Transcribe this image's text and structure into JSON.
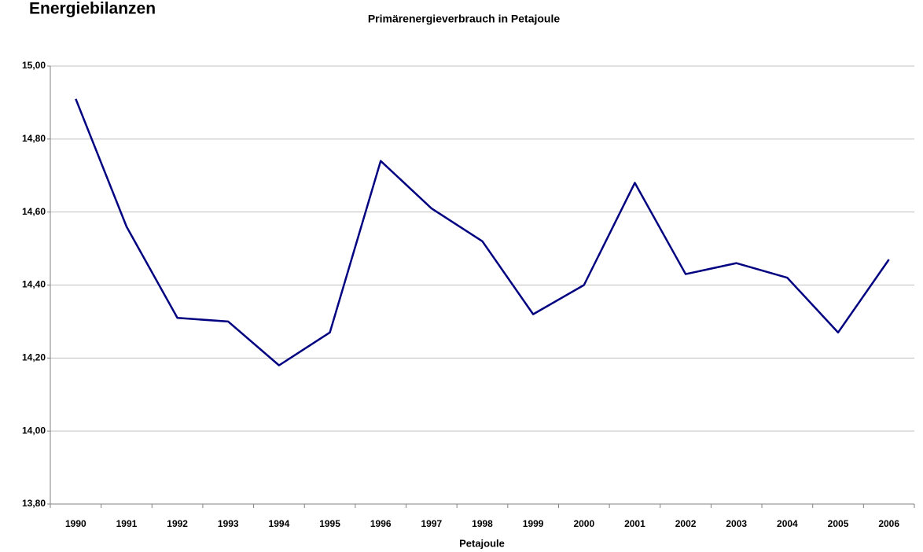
{
  "header": {
    "title": "Energiebilanzen"
  },
  "chart_data": {
    "type": "line",
    "title": "Primärenergieverbrauch in Petajoule",
    "x_label": "Petajoule",
    "categories": [
      "1990",
      "1991",
      "1992",
      "1993",
      "1994",
      "1995",
      "1996",
      "1997",
      "1998",
      "1999",
      "2000",
      "2001",
      "2002",
      "2003",
      "2004",
      "2005",
      "2006"
    ],
    "series": [
      {
        "name": "Primärenergieverbrauch",
        "color": "#000080",
        "values": [
          14.91,
          14.56,
          14.31,
          14.3,
          14.18,
          14.27,
          14.74,
          14.61,
          14.52,
          14.32,
          14.4,
          14.68,
          14.43,
          14.46,
          14.42,
          14.27,
          14.47
        ]
      }
    ],
    "ylim": [
      13.8,
      15.0
    ],
    "yticks": [
      {
        "value": 13.8,
        "label": "13,80"
      },
      {
        "value": 14.0,
        "label": "14,00"
      },
      {
        "value": 14.2,
        "label": "14,20"
      },
      {
        "value": 14.4,
        "label": "14,40"
      },
      {
        "value": 14.6,
        "label": "14,60"
      },
      {
        "value": 14.8,
        "label": "14,80"
      },
      {
        "value": 15.0,
        "label": "15,00"
      }
    ],
    "grid": true
  }
}
